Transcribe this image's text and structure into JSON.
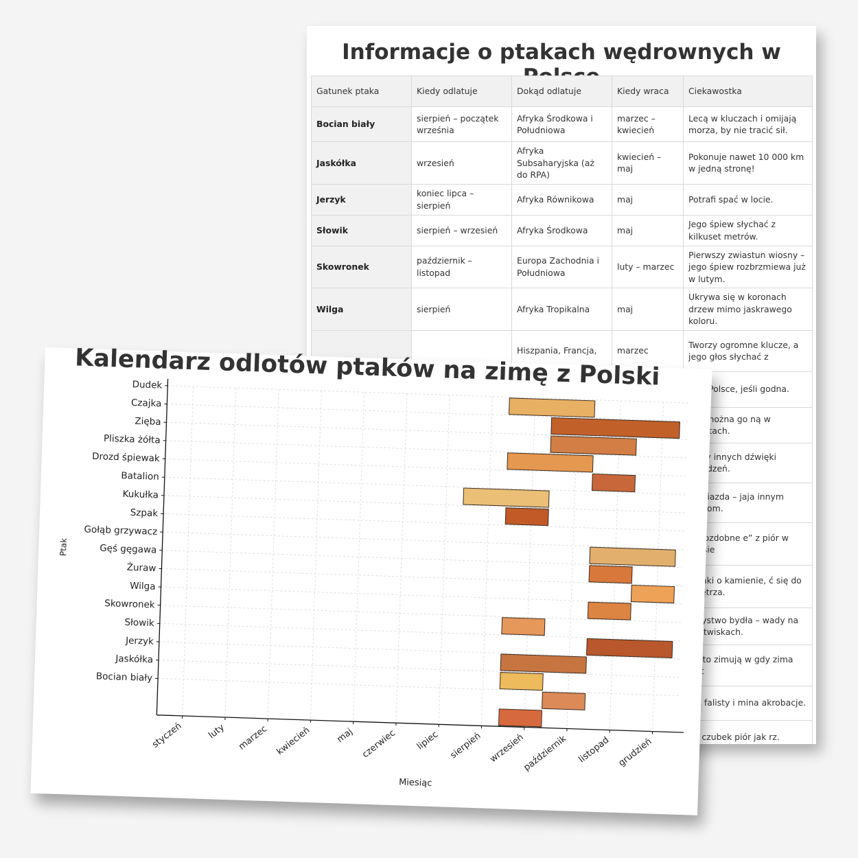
{
  "table_sheet": {
    "title": "Informacje o ptakach wędrownych w Polsce",
    "headers": [
      "Gatunek ptaka",
      "Kiedy odlatuje",
      "Dokąd odlatuje",
      "Kiedy wraca",
      "Ciekawostka"
    ],
    "rows": [
      [
        "Bocian biały",
        "sierpień – początek września",
        "Afryka Środkowa i Południowa",
        "marzec – kwiecień",
        "Lecą w kluczach i omijają morza, by nie tracić sił."
      ],
      [
        "Jaskółka",
        "wrzesień",
        "Afryka Subsaharyjska (aż do RPA)",
        "kwiecień – maj",
        "Pokonuje nawet 10 000 km w jedną stronę!"
      ],
      [
        "Jerzyk",
        "koniec lipca – sierpień",
        "Afryka Równikowa",
        "maj",
        "Potrafi spać w locie."
      ],
      [
        "Słowik",
        "sierpień – wrzesień",
        "Afryka Środkowa",
        "maj",
        "Jego śpiew słychać z kilkuset metrów."
      ],
      [
        "Skowronek",
        "październik – listopad",
        "Europa Zachodnia i Południowa",
        "luty – marzec",
        "Pierwszy zwiastun wiosny – jego śpiew rozbrzmiewa już w lutym."
      ],
      [
        "Wilga",
        "sierpień",
        "Afryka Tropikalna",
        "maj",
        "Ukrywa się w koronach drzew mimo jaskrawego koloru."
      ],
      [
        "",
        "",
        "Hiszpania, Francja,",
        "marzec",
        "Tworzy ogromne klucze, a jego głos słychać z"
      ],
      [
        "",
        "",
        "",
        "",
        "je w Polsce, jeśli godna."
      ],
      [
        "",
        "",
        "",
        "",
        "ciej można go ną w miastach."
      ],
      [
        "",
        "",
        "",
        "",
        "głosy innych dźwięki urządzeń."
      ],
      [
        "",
        "",
        "",
        "",
        "e gniazda – jaja innym ptakom."
      ],
      [
        "",
        "",
        "",
        "",
        "ają ozdobne e” z piór w czasie"
      ],
      [
        "",
        "",
        "",
        "",
        "limaki o kamienie, ć się do wnętrza."
      ],
      [
        "",
        "",
        "",
        "",
        "arzystwo bydła – wady na pastwiskach."
      ],
      [
        "",
        "",
        "",
        "",
        "zęsto zimują w gdy zima jest"
      ],
      [
        "",
        "",
        "",
        "",
        "est falisty i mina akrobacje."
      ],
      [
        "",
        "",
        "",
        "",
        "da czubek piór jak rz."
      ]
    ]
  },
  "chart_data": {
    "type": "bar",
    "orientation": "horizontal-range",
    "title": "Kalendarz odlotów ptaków na zimę z Polski",
    "xlabel": "Miesiąc",
    "ylabel": "Ptak",
    "x_ticks": [
      "styczeń",
      "luty",
      "marzec",
      "kwiecień",
      "maj",
      "czerwiec",
      "lipiec",
      "sierpień",
      "wrzesień",
      "październik",
      "listopad",
      "grudzień"
    ],
    "y_ticks": [
      "Dudek",
      "Czajka",
      "Zięba",
      "Pliszka żółta",
      "Drozd śpiewak",
      "Batalion",
      "Kukułka",
      "Szpak",
      "Gołąb grzywacz",
      "Gęś gęgawa",
      "Żuraw",
      "Wilga",
      "Skowronek",
      "Słowik",
      "Jerzyk",
      "Jaskółka",
      "Bocian biały"
    ],
    "bars": [
      {
        "row": 0.5,
        "start": 8.4,
        "end": 10.4,
        "color": "#E8B063"
      },
      {
        "row": 1.5,
        "start": 9.4,
        "end": 12.4,
        "color": "#C2602A"
      },
      {
        "row": 2.5,
        "start": 9.4,
        "end": 11.4,
        "color": "#D27E45"
      },
      {
        "row": 3.5,
        "start": 8.4,
        "end": 10.4,
        "color": "#E59850"
      },
      {
        "row": 4.5,
        "start": 10.4,
        "end": 11.4,
        "color": "#C8683A"
      },
      {
        "row": 5.5,
        "start": 7.4,
        "end": 9.4,
        "color": "#EBBF76"
      },
      {
        "row": 6.5,
        "start": 8.4,
        "end": 9.4,
        "color": "#C15A26"
      },
      {
        "row": 8.5,
        "start": 10.4,
        "end": 12.4,
        "color": "#E2B06C"
      },
      {
        "row": 9.5,
        "start": 10.4,
        "end": 11.4,
        "color": "#D8783A"
      },
      {
        "row": 10.5,
        "start": 11.4,
        "end": 12.4,
        "color": "#EEA258"
      },
      {
        "row": 11.5,
        "start": 10.4,
        "end": 11.4,
        "color": "#DC8442"
      },
      {
        "row": 12.5,
        "start": 8.4,
        "end": 9.4,
        "color": "#E5985A"
      },
      {
        "row": 13.5,
        "start": 10.4,
        "end": 12.4,
        "color": "#B8582C"
      },
      {
        "row": 14.5,
        "start": 8.4,
        "end": 10.4,
        "color": "#C77540"
      },
      {
        "row": 15.5,
        "start": 8.4,
        "end": 9.4,
        "color": "#EDBA5C"
      },
      {
        "row": 16.5,
        "start": 9.4,
        "end": 10.4,
        "color": "#DB8A58"
      },
      {
        "row": 17.5,
        "start": 8.4,
        "end": 9.4,
        "color": "#D7693F"
      }
    ],
    "xlim": [
      0.4,
      12.6
    ],
    "grid": true
  }
}
